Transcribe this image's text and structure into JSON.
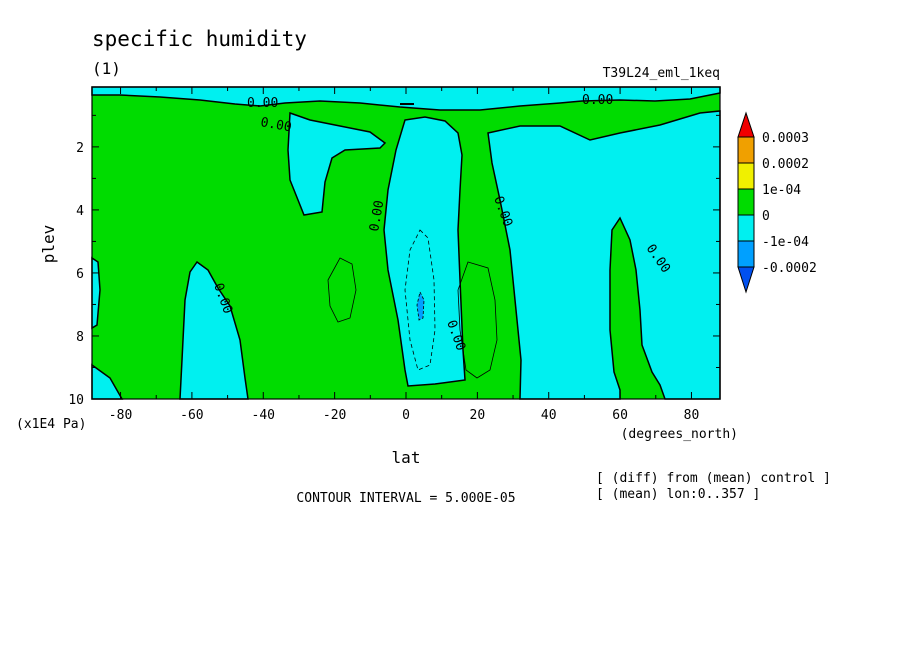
{
  "chart_data": {
    "type": "contour",
    "title": "specific humidity",
    "subtitle": "(1)",
    "experiment": "T39L24_eml_1keq",
    "xlabel": "lat",
    "xunits": "(degrees_north)",
    "ylabel": "plev",
    "yunits": "(x1E4 Pa)",
    "xlim": [
      -88,
      88
    ],
    "ylim": [
      10,
      0.1
    ],
    "x_ticks": [
      -80,
      -60,
      -40,
      -20,
      0,
      20,
      40,
      60,
      80
    ],
    "x_tick_labels": [
      "-80",
      "-60",
      "-40",
      "-20",
      "0",
      "20",
      "40",
      "60",
      "80"
    ],
    "y_ticks": [
      2,
      4,
      6,
      8,
      10
    ],
    "y_tick_labels": [
      "2",
      "4",
      "6",
      "8",
      "10"
    ],
    "contour_interval_text": "CONTOUR INTERVAL = 5.000E-05",
    "notes": [
      "[ (diff) from (mean) control ]",
      "[ (mean) lon:0..357 ]"
    ],
    "contour_labels": [
      "0.00",
      "0.00",
      "0.00",
      "0.00",
      "0.00",
      "0.00",
      "0.00",
      "0.00"
    ],
    "colorbar": {
      "labels": [
        "0.0003",
        "0.0002",
        "1e-04",
        "0",
        "-1e-04",
        "-0.0002"
      ],
      "colors": [
        "#f00000",
        "#f0a000",
        "#f0f000",
        "#00dc00",
        "#00f0f0",
        "#00a0ff",
        "#0050f0"
      ]
    },
    "fill_colors": {
      "positive": "#00dc00",
      "negative": "#00f0f0",
      "strong_negative": "#00a0ff"
    }
  }
}
